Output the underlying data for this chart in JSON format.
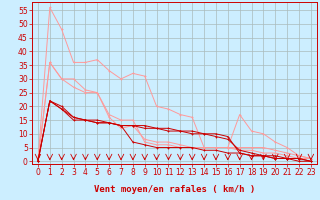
{
  "background_color": "#cceeff",
  "grid_color": "#aabbbb",
  "line_color_dark": "#cc0000",
  "line_color_light": "#ff9999",
  "xlabel": "Vent moyen/en rafales ( km/h )",
  "ylabel_ticks": [
    0,
    5,
    10,
    15,
    20,
    25,
    30,
    35,
    40,
    45,
    50,
    55
  ],
  "xlim": [
    -0.5,
    23.5
  ],
  "ylim": [
    -1,
    58
  ],
  "xticks": [
    0,
    1,
    2,
    3,
    4,
    5,
    6,
    7,
    8,
    9,
    10,
    11,
    12,
    13,
    14,
    15,
    16,
    17,
    18,
    19,
    20,
    21,
    22,
    23
  ],
  "series_dark": [
    [
      0,
      22,
      19,
      16,
      15,
      14,
      14,
      13,
      13,
      13,
      12,
      12,
      11,
      11,
      10,
      10,
      9,
      3,
      2,
      2,
      1,
      1,
      1,
      0
    ],
    [
      0,
      22,
      20,
      16,
      15,
      15,
      14,
      13,
      7,
      6,
      5,
      5,
      5,
      5,
      4,
      4,
      3,
      3,
      2,
      2,
      1,
      1,
      0,
      0
    ],
    [
      0,
      22,
      19,
      15,
      15,
      14,
      14,
      13,
      13,
      12,
      12,
      11,
      11,
      10,
      10,
      9,
      8,
      4,
      3,
      2,
      2,
      1,
      1,
      0
    ]
  ],
  "series_light": [
    [
      0,
      56,
      48,
      36,
      36,
      37,
      33,
      30,
      32,
      31,
      20,
      19,
      17,
      16,
      5,
      5,
      5,
      17,
      11,
      10,
      7,
      5,
      2,
      1
    ],
    [
      0,
      36,
      30,
      30,
      26,
      25,
      16,
      12,
      13,
      8,
      7,
      7,
      6,
      5,
      5,
      5,
      5,
      5,
      5,
      5,
      4,
      3,
      2,
      1
    ],
    [
      0,
      36,
      30,
      27,
      25,
      25,
      17,
      15,
      15,
      7,
      6,
      6,
      5,
      5,
      5,
      5,
      5,
      4,
      4,
      3,
      3,
      2,
      1,
      1
    ]
  ],
  "xlabel_fontsize": 6.5,
  "tick_fontsize": 5.5
}
